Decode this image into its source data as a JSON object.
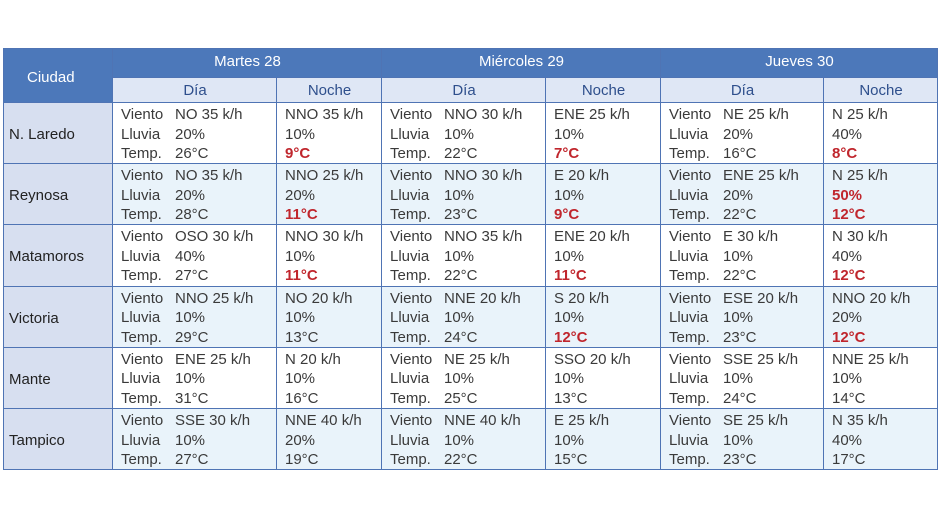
{
  "table": {
    "corner": "Ciudad",
    "highlight_color": "#c0262d",
    "labels": {
      "wind": "Viento",
      "rain": "Lluvia",
      "temp": "Temp."
    },
    "days": [
      {
        "name": "Martes 28",
        "sub": [
          "Día",
          "Noche"
        ]
      },
      {
        "name": "Miércoles 29",
        "sub": [
          "Día",
          "Noche"
        ]
      },
      {
        "name": "Jueves 30",
        "sub": [
          "Día",
          "Noche"
        ]
      }
    ],
    "rows": [
      {
        "city": "N. Laredo",
        "cells": [
          {
            "wind": "NO 35 k/h",
            "rain": "20%",
            "temp": "26°C"
          },
          {
            "wind": "NNO 35 k/h",
            "rain": "10%",
            "temp": "9°C",
            "highlight": [
              "temp"
            ]
          },
          {
            "wind": "NNO 30 k/h",
            "rain": "10%",
            "temp": "22°C"
          },
          {
            "wind": "ENE 25 k/h",
            "rain": "10%",
            "temp": "7°C",
            "highlight": [
              "temp"
            ]
          },
          {
            "wind": "NE 25 k/h",
            "rain": "20%",
            "temp": "16°C"
          },
          {
            "wind": "N 25 k/h",
            "rain": "40%",
            "temp": "8°C",
            "highlight": [
              "temp"
            ]
          }
        ]
      },
      {
        "city": "Reynosa",
        "cells": [
          {
            "wind": "NO 35 k/h",
            "rain": "20%",
            "temp": "28°C"
          },
          {
            "wind": "NNO 25 k/h",
            "rain": "20%",
            "temp": "11°C",
            "highlight": [
              "temp"
            ]
          },
          {
            "wind": "NNO 30 k/h",
            "rain": "10%",
            "temp": "23°C"
          },
          {
            "wind": "E 20 k/h",
            "rain": "10%",
            "temp": "9°C",
            "highlight": [
              "temp"
            ]
          },
          {
            "wind": "ENE 25 k/h",
            "rain": "20%",
            "temp": "22°C"
          },
          {
            "wind": "N 25 k/h",
            "rain": "50%",
            "temp": "12°C",
            "highlight": [
              "rain",
              "temp"
            ]
          }
        ]
      },
      {
        "city": "Matamoros",
        "cells": [
          {
            "wind": "OSO 30 k/h",
            "rain": "40%",
            "temp": "27°C"
          },
          {
            "wind": "NNO 30 k/h",
            "rain": "10%",
            "temp": "11°C",
            "highlight": [
              "temp"
            ]
          },
          {
            "wind": "NNO 35 k/h",
            "rain": "10%",
            "temp": "22°C"
          },
          {
            "wind": "ENE 20 k/h",
            "rain": "10%",
            "temp": "11°C",
            "highlight": [
              "temp"
            ]
          },
          {
            "wind": "E 30 k/h",
            "rain": "10%",
            "temp": "22°C"
          },
          {
            "wind": "N 30 k/h",
            "rain": "40%",
            "temp": "12°C",
            "highlight": [
              "temp"
            ]
          }
        ]
      },
      {
        "city": "Victoria",
        "cells": [
          {
            "wind": "NNO 25 k/h",
            "rain": "10%",
            "temp": "29°C"
          },
          {
            "wind": "NO 20 k/h",
            "rain": "10%",
            "temp": "13°C"
          },
          {
            "wind": "NNE 20 k/h",
            "rain": "10%",
            "temp": "24°C"
          },
          {
            "wind": "S 20 k/h",
            "rain": "10%",
            "temp": "12°C",
            "highlight": [
              "temp"
            ]
          },
          {
            "wind": "ESE 20 k/h",
            "rain": "10%",
            "temp": "23°C"
          },
          {
            "wind": "NNO 20 k/h",
            "rain": "20%",
            "temp": "12°C",
            "highlight": [
              "temp"
            ]
          }
        ]
      },
      {
        "city": "Mante",
        "cells": [
          {
            "wind": "ENE 25 k/h",
            "rain": "10%",
            "temp": "31°C"
          },
          {
            "wind": "N 20 k/h",
            "rain": "10%",
            "temp": "16°C"
          },
          {
            "wind": "NE 25 k/h",
            "rain": "10%",
            "temp": "25°C"
          },
          {
            "wind": "SSO 20 k/h",
            "rain": "10%",
            "temp": "13°C"
          },
          {
            "wind": "SSE 25 k/h",
            "rain": "10%",
            "temp": "24°C"
          },
          {
            "wind": "NNE 25 k/h",
            "rain": "10%",
            "temp": "14°C"
          }
        ]
      },
      {
        "city": "Tampico",
        "cells": [
          {
            "wind": "SSE 30 k/h",
            "rain": "10%",
            "temp": "27°C"
          },
          {
            "wind": "NNE 40 k/h",
            "rain": "20%",
            "temp": "19°C"
          },
          {
            "wind": "NNE 40 k/h",
            "rain": "10%",
            "temp": "22°C"
          },
          {
            "wind": "E 25 k/h",
            "rain": "10%",
            "temp": "15°C"
          },
          {
            "wind": "SE 25 k/h",
            "rain": "10%",
            "temp": "23°C"
          },
          {
            "wind": "N 35 k/h",
            "rain": "40%",
            "temp": "17°C"
          }
        ]
      }
    ]
  }
}
